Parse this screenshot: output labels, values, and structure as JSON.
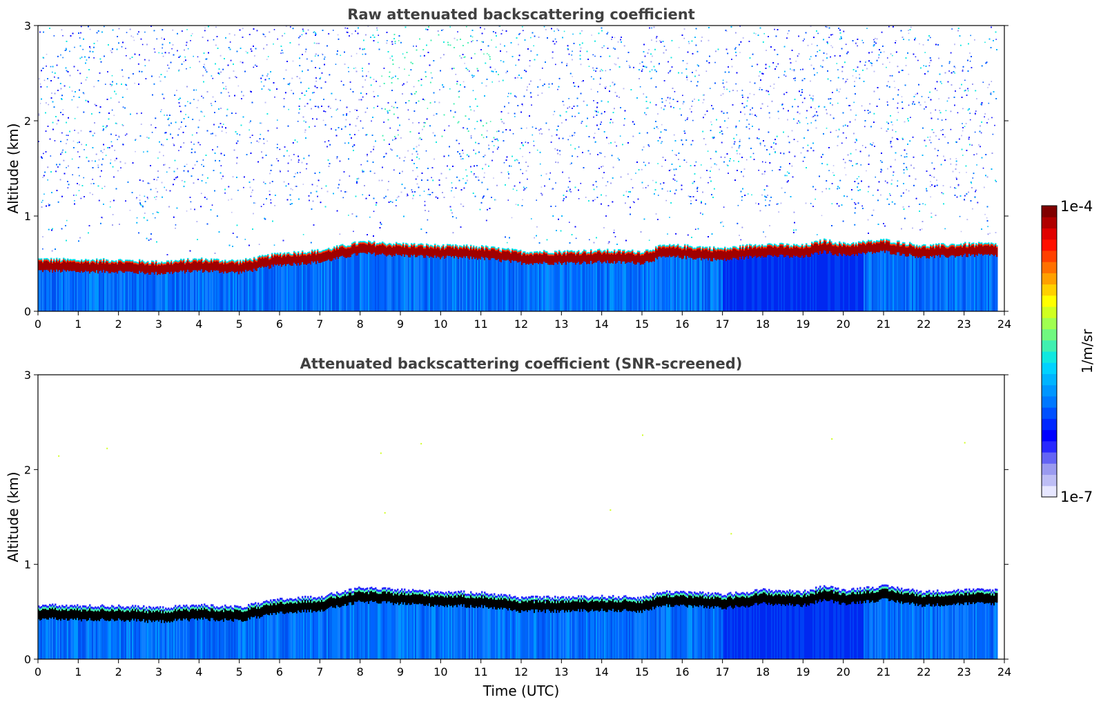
{
  "chart_data": [
    {
      "type": "heatmap",
      "title": "Raw attenuated backscattering coefficient",
      "xlabel": "",
      "ylabel": "Altitude (km)",
      "xlim": [
        0,
        24
      ],
      "ylim": [
        0,
        3
      ],
      "xticks": [
        "0",
        "1",
        "2",
        "3",
        "4",
        "5",
        "6",
        "7",
        "8",
        "9",
        "10",
        "11",
        "12",
        "13",
        "14",
        "15",
        "16",
        "17",
        "18",
        "19",
        "20",
        "21",
        "22",
        "23",
        "24"
      ],
      "yticks": [
        "0",
        "1",
        "2",
        "3"
      ],
      "data_extent_hours": 23.8,
      "layer_top_km": [
        {
          "t": 0,
          "z": 0.52
        },
        {
          "t": 1,
          "z": 0.51
        },
        {
          "t": 2,
          "z": 0.51
        },
        {
          "t": 3,
          "z": 0.49
        },
        {
          "t": 4,
          "z": 0.52
        },
        {
          "t": 5,
          "z": 0.5
        },
        {
          "t": 6,
          "z": 0.58
        },
        {
          "t": 7,
          "z": 0.61
        },
        {
          "t": 8,
          "z": 0.7
        },
        {
          "t": 9,
          "z": 0.68
        },
        {
          "t": 10,
          "z": 0.66
        },
        {
          "t": 11,
          "z": 0.65
        },
        {
          "t": 12,
          "z": 0.6
        },
        {
          "t": 13,
          "z": 0.6
        },
        {
          "t": 14,
          "z": 0.61
        },
        {
          "t": 15,
          "z": 0.6
        },
        {
          "t": 15.5,
          "z": 0.66
        },
        {
          "t": 16,
          "z": 0.66
        },
        {
          "t": 17,
          "z": 0.63
        },
        {
          "t": 18,
          "z": 0.68
        },
        {
          "t": 19,
          "z": 0.66
        },
        {
          "t": 19.5,
          "z": 0.72
        },
        {
          "t": 20,
          "z": 0.68
        },
        {
          "t": 21,
          "z": 0.72
        },
        {
          "t": 22,
          "z": 0.66
        },
        {
          "t": 23,
          "z": 0.68
        },
        {
          "t": 23.8,
          "z": 0.68
        }
      ],
      "noise": "dense above layer, from 0.6 km to 3 km"
    },
    {
      "type": "heatmap",
      "title": "Attenuated backscattering coefficient (SNR-screened)",
      "xlabel": "Time (UTC)",
      "ylabel": "Altitude (km)",
      "xlim": [
        0,
        24
      ],
      "ylim": [
        0,
        3
      ],
      "xticks": [
        "0",
        "1",
        "2",
        "3",
        "4",
        "5",
        "6",
        "7",
        "8",
        "9",
        "10",
        "11",
        "12",
        "13",
        "14",
        "15",
        "16",
        "17",
        "18",
        "19",
        "20",
        "21",
        "22",
        "23",
        "24"
      ],
      "yticks": [
        "0",
        "1",
        "2",
        "3"
      ],
      "data_extent_hours": 23.8,
      "layer_top_km": [
        {
          "t": 0,
          "z": 0.52
        },
        {
          "t": 1,
          "z": 0.51
        },
        {
          "t": 2,
          "z": 0.51
        },
        {
          "t": 3,
          "z": 0.49
        },
        {
          "t": 4,
          "z": 0.52
        },
        {
          "t": 5,
          "z": 0.5
        },
        {
          "t": 6,
          "z": 0.58
        },
        {
          "t": 7,
          "z": 0.61
        },
        {
          "t": 8,
          "z": 0.7
        },
        {
          "t": 9,
          "z": 0.68
        },
        {
          "t": 10,
          "z": 0.66
        },
        {
          "t": 11,
          "z": 0.65
        },
        {
          "t": 12,
          "z": 0.6
        },
        {
          "t": 13,
          "z": 0.6
        },
        {
          "t": 14,
          "z": 0.61
        },
        {
          "t": 15,
          "z": 0.6
        },
        {
          "t": 15.5,
          "z": 0.66
        },
        {
          "t": 16,
          "z": 0.66
        },
        {
          "t": 17,
          "z": 0.63
        },
        {
          "t": 18,
          "z": 0.68
        },
        {
          "t": 19,
          "z": 0.66
        },
        {
          "t": 19.5,
          "z": 0.72
        },
        {
          "t": 20,
          "z": 0.68
        },
        {
          "t": 21,
          "z": 0.72
        },
        {
          "t": 22,
          "z": 0.66
        },
        {
          "t": 23,
          "z": 0.68
        },
        {
          "t": 23.8,
          "z": 0.68
        }
      ],
      "layer_core_color": "#000000",
      "noise": "screened out, isolated specks only"
    }
  ],
  "colorbar": {
    "label": "1/m/sr",
    "max_label": "1e-4",
    "min_label": "1e-7",
    "scale": "log",
    "colors": [
      "#e6e6ff",
      "#bdbdf5",
      "#9a9af0",
      "#6464f5",
      "#2828ff",
      "#0000ff",
      "#0028ff",
      "#0050ff",
      "#0078ff",
      "#0096ff",
      "#00b4ff",
      "#00d2ff",
      "#10e8e0",
      "#40f0b0",
      "#70f880",
      "#a0ff50",
      "#d0ff20",
      "#ffff00",
      "#ffd000",
      "#ffa000",
      "#ff7000",
      "#ff4000",
      "#ff1000",
      "#e00000",
      "#b00000",
      "#800000"
    ]
  }
}
